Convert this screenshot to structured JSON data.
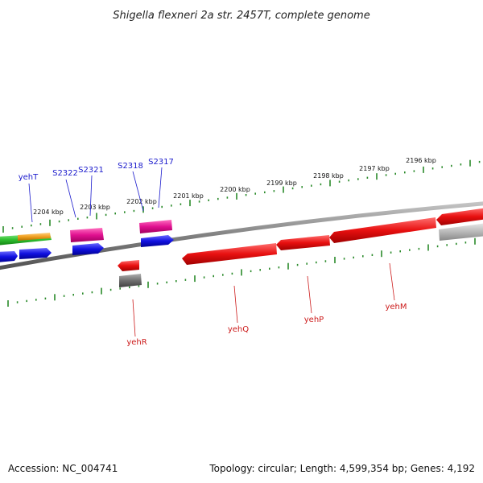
{
  "header": {
    "title": "Shigella flexneri 2a str. 2457T, complete genome"
  },
  "footer": {
    "accession": "Accession: NC_004741",
    "summary": "Topology: circular; Length: 4,599,354 bp; Genes: 4,192"
  },
  "colors": {
    "backbone": "#8a8a8a",
    "tick": "#2a8a2a",
    "forward_label": "#1a1acc",
    "reverse_label": "#cc1a1a",
    "red": "#e81010",
    "blue": "#1010e0",
    "magenta": "#e01090",
    "green": "#30c030",
    "orange": "#f0a020",
    "gray_dark": "#707070",
    "gray_light": "#b8b8b8"
  },
  "ticks": [
    {
      "label": "2204 kbp"
    },
    {
      "label": "2203 kbp"
    },
    {
      "label": "2202 kbp"
    },
    {
      "label": "2201 kbp"
    },
    {
      "label": "2200 kbp"
    },
    {
      "label": "2199 kbp"
    },
    {
      "label": "2198 kbp"
    },
    {
      "label": "2197 kbp"
    },
    {
      "label": "2196 kbp"
    }
  ],
  "gene_labels": {
    "forward": [
      "yehT",
      "S2322",
      "S2321",
      "S2318",
      "S2317"
    ],
    "reverse": [
      "yehR",
      "yehQ",
      "yehP",
      "yehM"
    ]
  }
}
